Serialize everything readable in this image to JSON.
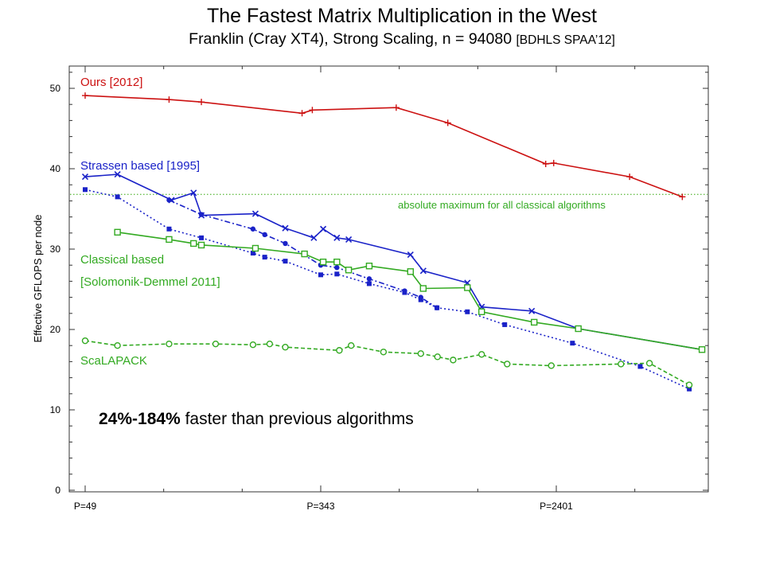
{
  "title": "The Fastest Matrix Multiplication in the West",
  "subtitle": "Franklin (Cray XT4), Strong Scaling, n = 94080",
  "subtitle_ref": "[BDHLS SPAA’12]",
  "chart_data": {
    "type": "line",
    "ylabel": "Effective GFLOPS per node",
    "xlabel": "",
    "x_axis": {
      "scale": "log",
      "ticks": [
        {
          "label": "P=49",
          "value": 49
        },
        {
          "label": "P=343",
          "value": 343
        },
        {
          "label": "P=2401",
          "value": 2401
        }
      ],
      "range": [
        49,
        9000
      ]
    },
    "y_axis": {
      "range": [
        0,
        53
      ],
      "ticks": [
        0,
        10,
        20,
        30,
        40,
        50
      ]
    },
    "grid": false,
    "reference_line": {
      "y": 36.8,
      "label": "absolute maximum for all classical algorithms",
      "color": "#6abf4b"
    },
    "annotation": {
      "bold": "24%-184%",
      "text": " faster than previous algorithms"
    },
    "series": [
      {
        "name": "Ours [2012]",
        "color": "#cc1111",
        "marker": "plus",
        "dash": "solid",
        "points": [
          [
            49,
            49.1
          ],
          [
            98,
            48.6
          ],
          [
            128,
            48.3
          ],
          [
            294,
            46.9
          ],
          [
            320,
            47.3
          ],
          [
            640,
            47.6
          ],
          [
            980,
            45.7
          ],
          [
            2200,
            40.6
          ],
          [
            2350,
            40.7
          ],
          [
            4400,
            39
          ],
          [
            6800,
            36.5
          ]
        ]
      },
      {
        "name": "Strassen based [1995]",
        "color": "#1a22c8",
        "marker": "x",
        "dash": "solid",
        "points": [
          [
            49,
            39
          ],
          [
            64,
            39.3
          ],
          [
            100,
            36.1
          ],
          [
            120,
            37
          ],
          [
            128,
            34.2
          ],
          [
            200,
            34.4
          ],
          [
            256,
            32.6
          ],
          [
            324,
            31.4
          ],
          [
            350,
            32.5
          ],
          [
            392,
            31.4
          ],
          [
            432,
            31.2
          ],
          [
            720,
            29.3
          ],
          [
            800,
            27.3
          ],
          [
            1152,
            25.8
          ],
          [
            1296,
            22.8
          ],
          [
            1960,
            22.3
          ],
          [
            2880,
            20.1
          ],
          [
            8000,
            17.5
          ]
        ]
      },
      {
        "name": "",
        "color": "#1a22c8",
        "marker": "filled-square",
        "dash": "dotted",
        "points": [
          [
            49,
            37.4
          ],
          [
            64,
            36.5
          ],
          [
            98,
            32.5
          ],
          [
            128,
            31.4
          ],
          [
            196,
            29.5
          ],
          [
            216,
            29
          ],
          [
            256,
            28.5
          ],
          [
            343,
            26.8
          ],
          [
            392,
            26.9
          ],
          [
            512,
            25.7
          ],
          [
            686,
            24.6
          ],
          [
            784,
            23.7
          ],
          [
            896,
            22.7
          ],
          [
            1152,
            22.2
          ],
          [
            1568,
            20.6
          ],
          [
            2744,
            18.3
          ],
          [
            4802,
            15.4
          ],
          [
            7203,
            12.6
          ]
        ]
      },
      {
        "name": "",
        "color": "#1a22c8",
        "marker": "filled-circle",
        "dash": "dashdot",
        "points": [
          [
            98,
            36.1
          ],
          [
            128,
            34.3
          ],
          [
            196,
            32.5
          ],
          [
            216,
            31.8
          ],
          [
            256,
            30.7
          ],
          [
            343,
            28
          ],
          [
            392,
            27.7
          ],
          [
            512,
            26.3
          ],
          [
            686,
            24.8
          ],
          [
            784,
            24
          ],
          [
            896,
            22.7
          ]
        ]
      },
      {
        "name": "Classical based",
        "color": "#33aa22",
        "marker": "square",
        "dash": "solid",
        "points": [
          [
            64,
            32.1
          ],
          [
            98,
            31.2
          ],
          [
            120,
            30.7
          ],
          [
            128,
            30.5
          ],
          [
            200,
            30.1
          ],
          [
            300,
            29.4
          ],
          [
            350,
            28.4
          ],
          [
            392,
            28.4
          ],
          [
            432,
            27.4
          ],
          [
            512,
            27.9
          ],
          [
            720,
            27.2
          ],
          [
            800,
            25.1
          ],
          [
            1152,
            25.2
          ],
          [
            1296,
            22.2
          ],
          [
            2000,
            20.9
          ],
          [
            2880,
            20.1
          ],
          [
            8000,
            17.5
          ]
        ]
      },
      {
        "name": "ScaLAPACK",
        "color": "#33aa22",
        "marker": "circle",
        "dash": "dashed",
        "points": [
          [
            49,
            18.6
          ],
          [
            64,
            18
          ],
          [
            98,
            18.2
          ],
          [
            144,
            18.2
          ],
          [
            196,
            18.1
          ],
          [
            225,
            18.2
          ],
          [
            256,
            17.8
          ],
          [
            400,
            17.4
          ],
          [
            441,
            18
          ],
          [
            576,
            17.2
          ],
          [
            784,
            17
          ],
          [
            900,
            16.6
          ],
          [
            1024,
            16.2
          ],
          [
            1296,
            16.9
          ],
          [
            1600,
            15.7
          ],
          [
            2304,
            15.5
          ],
          [
            4096,
            15.7
          ],
          [
            5184,
            15.8
          ],
          [
            7200,
            13.1
          ]
        ]
      }
    ],
    "series_labels": [
      {
        "text": "Ours [2012]",
        "color": "#cc1111"
      },
      {
        "text": "Strassen based [1995]",
        "color": "#1a22c8"
      },
      {
        "text": "Classical based",
        "color": "#33aa22"
      },
      {
        "text": "[Solomonik-Demmel 2011]",
        "color": "#33aa22"
      },
      {
        "text": "ScaLAPACK",
        "color": "#33aa22"
      }
    ]
  }
}
